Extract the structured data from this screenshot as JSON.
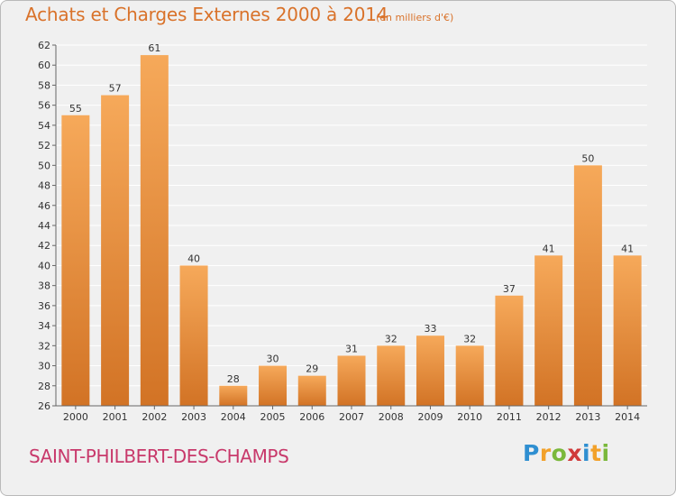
{
  "header": {
    "title": "Achats et Charges Externes 2000 à 2014",
    "subtitle": "(en milliers d'€)"
  },
  "footer": {
    "commune": "SAINT-PHILBERT-DES-CHAMPS",
    "logo": {
      "letters": [
        "P",
        "r",
        "o",
        "x",
        "i",
        "t",
        "i"
      ],
      "colors": [
        "#2f8fd1",
        "#f2a12a",
        "#7ab83b",
        "#d03a3a",
        "#2f8fd1",
        "#f2a12a",
        "#7ab83b"
      ]
    }
  },
  "colors": {
    "bar_light": "#f6a95a",
    "bar_dark": "#d27325",
    "grid": "#ffffff",
    "axis": "#666666",
    "text_accent": "#d9722a",
    "commune": "#c8396b"
  },
  "chart_data": {
    "type": "bar",
    "title": "Achats et Charges Externes 2000 à 2014",
    "subtitle": "(en milliers d'€)",
    "xlabel": "",
    "ylabel": "",
    "categories": [
      "2000",
      "2001",
      "2002",
      "2003",
      "2004",
      "2005",
      "2006",
      "2007",
      "2008",
      "2009",
      "2010",
      "2011",
      "2012",
      "2013",
      "2014"
    ],
    "values": [
      55,
      57,
      61,
      40,
      28,
      30,
      29,
      31,
      32,
      33,
      32,
      37,
      41,
      50,
      41
    ],
    "ylim": [
      26,
      62
    ],
    "ytick_step": 2,
    "grid": true,
    "legend": "none"
  }
}
